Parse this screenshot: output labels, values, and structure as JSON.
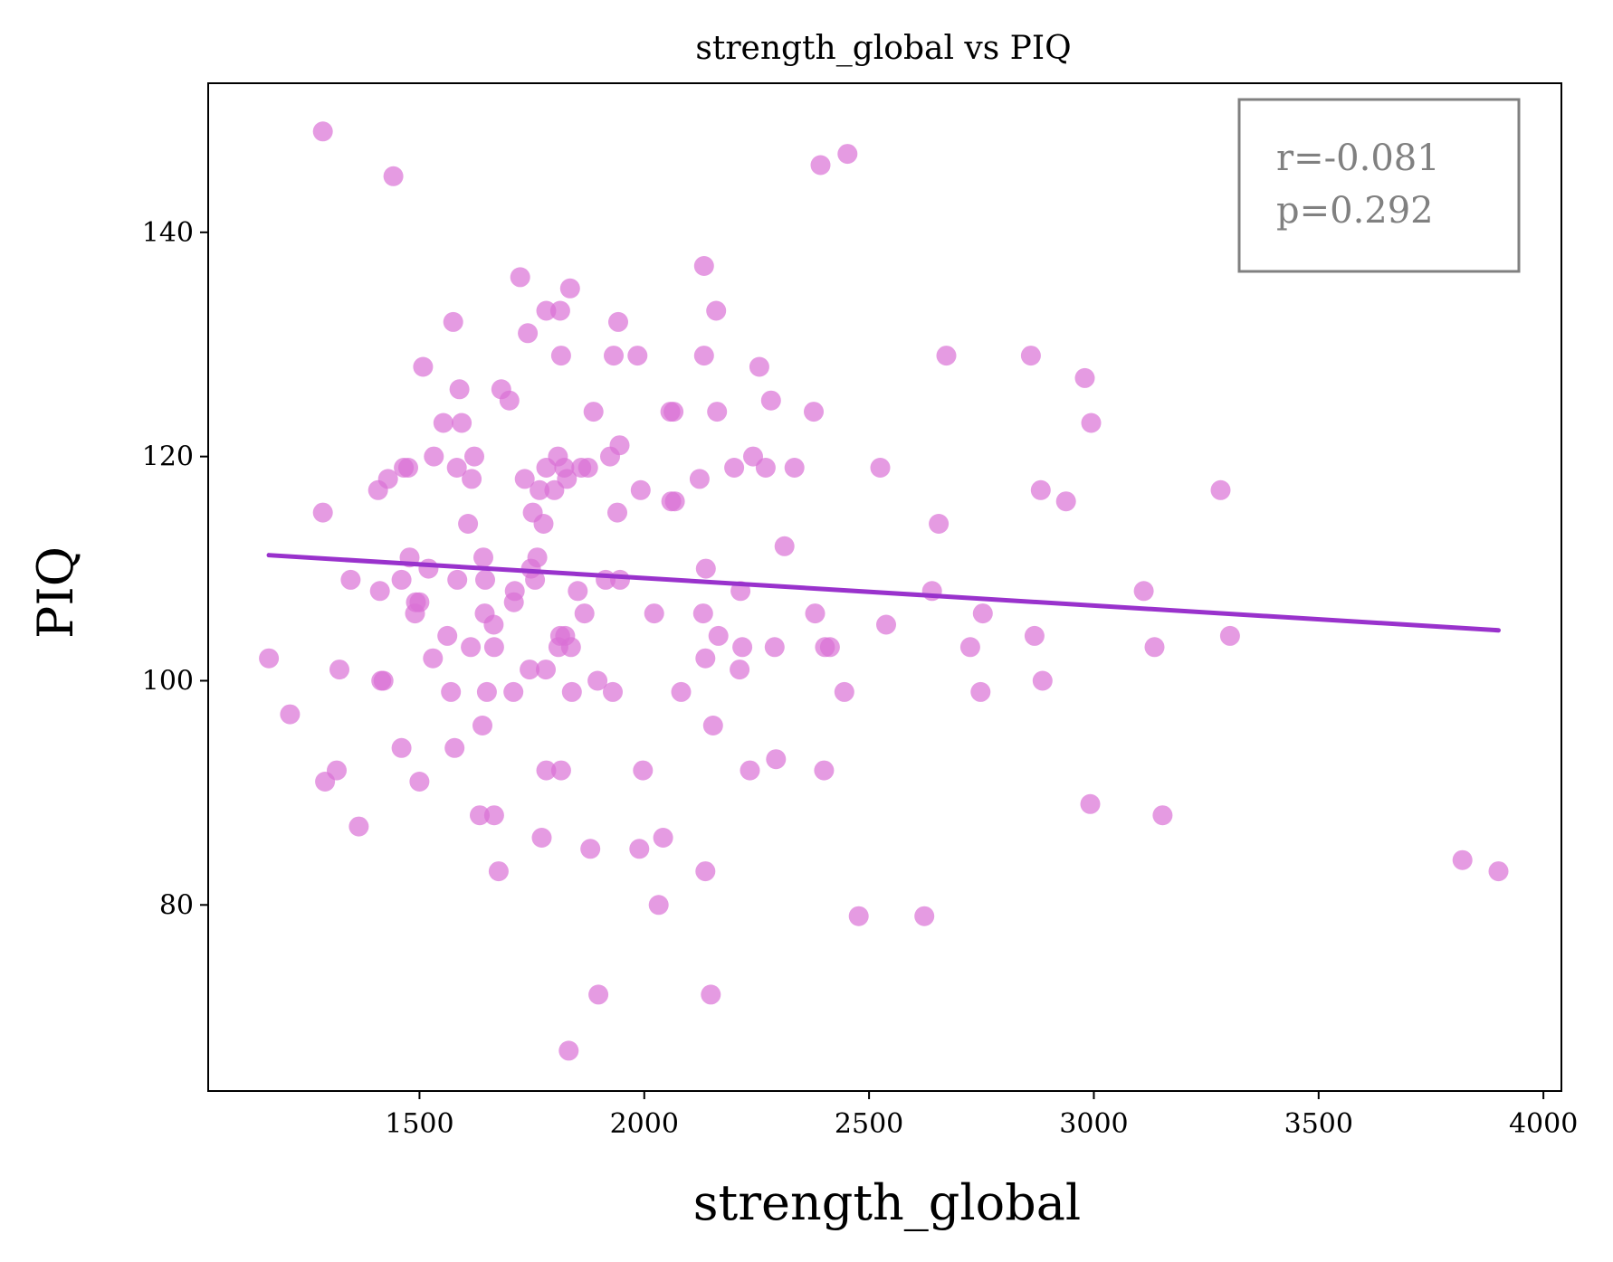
{
  "chart_data": {
    "type": "scatter",
    "title": "strength_global vs PIQ",
    "xlabel": "strength_global",
    "ylabel": "PIQ",
    "xlim": [
      1030,
      4040
    ],
    "ylim": [
      63.4,
      153.3
    ],
    "xticks": [
      1500,
      2000,
      2500,
      3000,
      3500,
      4000
    ],
    "yticks": [
      80,
      100,
      120,
      140
    ],
    "grid": false,
    "annotation": {
      "lines": [
        "r=-0.081",
        "p=0.292"
      ],
      "placement": "top-right"
    },
    "fit_line": {
      "x": [
        1165,
        3900
      ],
      "y": [
        111.2,
        104.5
      ]
    },
    "point_color": "#da70d6",
    "line_color": "#9932cc",
    "points": [
      [
        1165,
        102
      ],
      [
        1212,
        97
      ],
      [
        1285,
        149
      ],
      [
        1285,
        115
      ],
      [
        1290,
        91
      ],
      [
        1322,
        101
      ],
      [
        1316,
        92
      ],
      [
        1347,
        109
      ],
      [
        1365,
        87
      ],
      [
        1408,
        117
      ],
      [
        1412,
        108
      ],
      [
        1415,
        100
      ],
      [
        1420,
        100
      ],
      [
        1430,
        118
      ],
      [
        1442,
        145
      ],
      [
        1460,
        94
      ],
      [
        1460,
        109
      ],
      [
        1465,
        119
      ],
      [
        1475,
        119
      ],
      [
        1478,
        111
      ],
      [
        1490,
        106
      ],
      [
        1492,
        107
      ],
      [
        1500,
        107
      ],
      [
        1500,
        91
      ],
      [
        1508,
        128
      ],
      [
        1520,
        110
      ],
      [
        1530,
        102
      ],
      [
        1532,
        120
      ],
      [
        1553,
        123
      ],
      [
        1562,
        104
      ],
      [
        1570,
        99
      ],
      [
        1575,
        132
      ],
      [
        1578,
        94
      ],
      [
        1583,
        119
      ],
      [
        1584,
        109
      ],
      [
        1589,
        126
      ],
      [
        1594,
        123
      ],
      [
        1608,
        114
      ],
      [
        1614,
        103
      ],
      [
        1616,
        118
      ],
      [
        1622,
        120
      ],
      [
        1634,
        88
      ],
      [
        1640,
        96
      ],
      [
        1642,
        111
      ],
      [
        1645,
        106
      ],
      [
        1646,
        109
      ],
      [
        1650,
        99
      ],
      [
        1665,
        105
      ],
      [
        1666,
        103
      ],
      [
        1666,
        88
      ],
      [
        1676,
        83
      ],
      [
        1682,
        126
      ],
      [
        1700,
        125
      ],
      [
        1709,
        99
      ],
      [
        1710,
        107
      ],
      [
        1712,
        108
      ],
      [
        1724,
        136
      ],
      [
        1734,
        118
      ],
      [
        1741,
        131
      ],
      [
        1745,
        101
      ],
      [
        1748,
        110
      ],
      [
        1752,
        115
      ],
      [
        1757,
        109
      ],
      [
        1762,
        111
      ],
      [
        1767,
        117
      ],
      [
        1772,
        86
      ],
      [
        1776,
        114
      ],
      [
        1781,
        101
      ],
      [
        1782,
        92
      ],
      [
        1782,
        119
      ],
      [
        1782,
        133
      ],
      [
        1800,
        117
      ],
      [
        1808,
        120
      ],
      [
        1809,
        103
      ],
      [
        1813,
        104
      ],
      [
        1813,
        133
      ],
      [
        1815,
        129
      ],
      [
        1815,
        92
      ],
      [
        1822,
        119
      ],
      [
        1824,
        104
      ],
      [
        1828,
        118
      ],
      [
        1832,
        67
      ],
      [
        1835,
        135
      ],
      [
        1837,
        103
      ],
      [
        1839,
        99
      ],
      [
        1852,
        108
      ],
      [
        1860,
        119
      ],
      [
        1867,
        106
      ],
      [
        1875,
        119
      ],
      [
        1880,
        85
      ],
      [
        1887,
        124
      ],
      [
        1896,
        100
      ],
      [
        1898,
        72
      ],
      [
        1914,
        109
      ],
      [
        1924,
        120
      ],
      [
        1930,
        99
      ],
      [
        1932,
        129
      ],
      [
        1940,
        115
      ],
      [
        1942,
        132
      ],
      [
        1946,
        109
      ],
      [
        1945,
        121
      ],
      [
        1985,
        129
      ],
      [
        1989,
        85
      ],
      [
        1992,
        117
      ],
      [
        1997,
        92
      ],
      [
        2022,
        106
      ],
      [
        2032,
        80
      ],
      [
        2042,
        86
      ],
      [
        2058,
        124
      ],
      [
        2060,
        116
      ],
      [
        2065,
        124
      ],
      [
        2068,
        116
      ],
      [
        2082,
        99
      ],
      [
        2123,
        118
      ],
      [
        2131,
        106
      ],
      [
        2133,
        129
      ],
      [
        2133,
        137
      ],
      [
        2136,
        83
      ],
      [
        2137,
        110
      ],
      [
        2136,
        102
      ],
      [
        2148,
        72
      ],
      [
        2153,
        96
      ],
      [
        2160,
        133
      ],
      [
        2162,
        124
      ],
      [
        2165,
        104
      ],
      [
        2200,
        119
      ],
      [
        2212,
        101
      ],
      [
        2214,
        108
      ],
      [
        2218,
        103
      ],
      [
        2235,
        92
      ],
      [
        2242,
        120
      ],
      [
        2256,
        128
      ],
      [
        2270,
        119
      ],
      [
        2282,
        125
      ],
      [
        2290,
        103
      ],
      [
        2293,
        93
      ],
      [
        2312,
        112
      ],
      [
        2334,
        119
      ],
      [
        2377,
        124
      ],
      [
        2380,
        106
      ],
      [
        2392,
        146
      ],
      [
        2400,
        92
      ],
      [
        2402,
        103
      ],
      [
        2413,
        103
      ],
      [
        2445,
        99
      ],
      [
        2452,
        147
      ],
      [
        2477,
        79
      ],
      [
        2525,
        119
      ],
      [
        2538,
        105
      ],
      [
        2623,
        79
      ],
      [
        2640,
        108
      ],
      [
        2655,
        114
      ],
      [
        2672,
        129
      ],
      [
        2725,
        103
      ],
      [
        2748,
        99
      ],
      [
        2753,
        106
      ],
      [
        2860,
        129
      ],
      [
        2868,
        104
      ],
      [
        2882,
        117
      ],
      [
        2886,
        100
      ],
      [
        2938,
        116
      ],
      [
        2980,
        127
      ],
      [
        2992,
        89
      ],
      [
        2994,
        123
      ],
      [
        3111,
        108
      ],
      [
        3135,
        103
      ],
      [
        3153,
        88
      ],
      [
        3282,
        117
      ],
      [
        3303,
        104
      ],
      [
        3820,
        84
      ],
      [
        3900,
        83
      ]
    ]
  }
}
